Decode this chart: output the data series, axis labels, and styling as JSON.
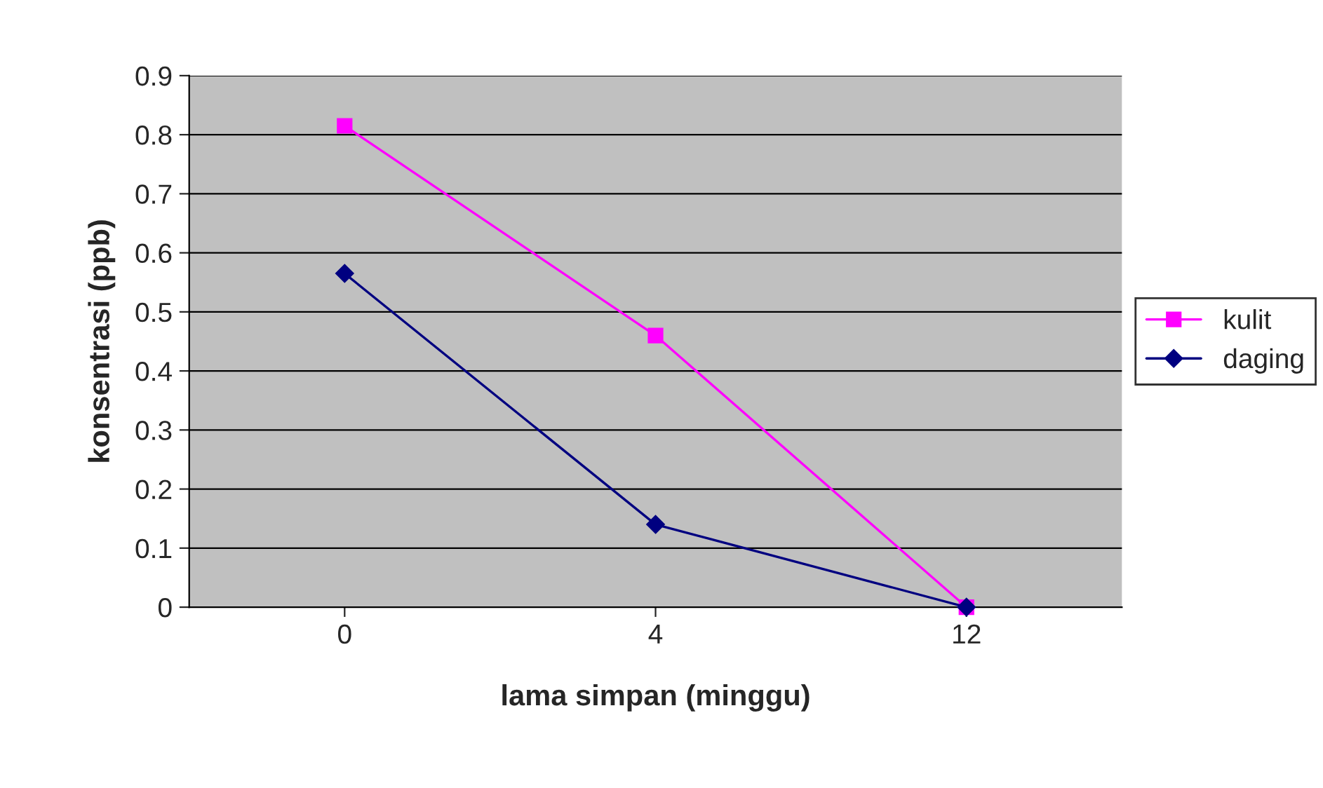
{
  "chart_data": {
    "type": "line",
    "xlabel": "lama simpan (minggu)",
    "ylabel": "konsentrasi (ppb)",
    "categories": [
      "0",
      "4",
      "12"
    ],
    "series": [
      {
        "name": "kulit",
        "color": "#ff00ff",
        "marker": "square",
        "values": [
          0.815,
          0.46,
          0
        ]
      },
      {
        "name": "daging",
        "color": "#000080",
        "marker": "diamond",
        "values": [
          0.565,
          0.14,
          0
        ]
      }
    ],
    "ylim": [
      0,
      0.9
    ],
    "yticks": [
      0,
      0.1,
      0.2,
      0.3,
      0.4,
      0.5,
      0.6,
      0.7,
      0.8,
      0.9
    ],
    "grid": "y",
    "legend": "right",
    "line_style": "solid"
  }
}
